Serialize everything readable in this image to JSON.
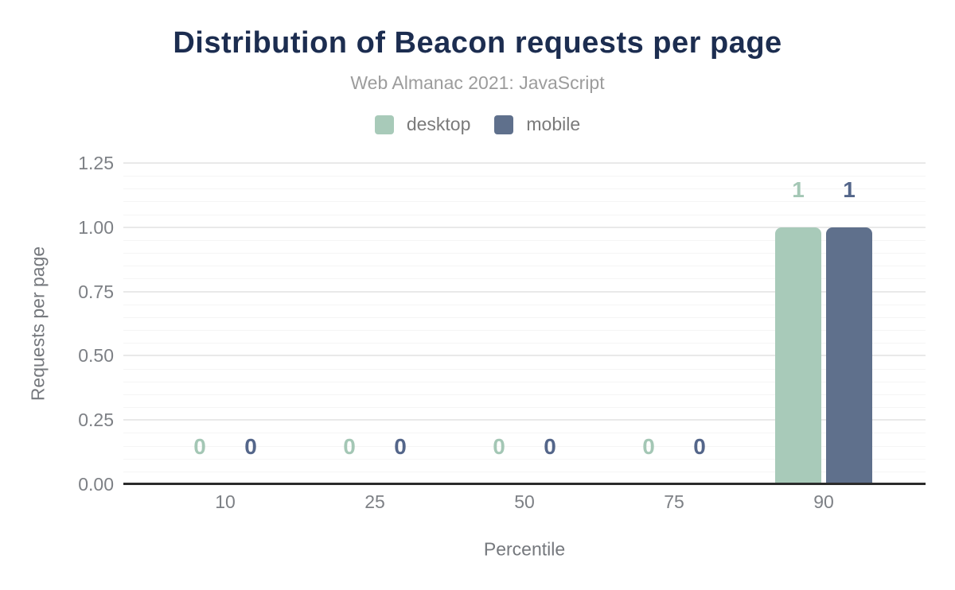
{
  "chart_data": {
    "type": "bar",
    "title": "Distribution of Beacon requests per page",
    "subtitle": "Web Almanac 2021: JavaScript",
    "xlabel": "Percentile",
    "ylabel": "Requests per page",
    "categories": [
      "10",
      "25",
      "50",
      "75",
      "90"
    ],
    "series": [
      {
        "name": "desktop",
        "color": "#a8cab9",
        "label_color": "#a4c7b5",
        "values": [
          0,
          0,
          0,
          0,
          1
        ]
      },
      {
        "name": "mobile",
        "color": "#5f708c",
        "label_color": "#54668a",
        "values": [
          0,
          0,
          0,
          0,
          1
        ]
      }
    ],
    "y_ticks": [
      "0.00",
      "0.25",
      "0.50",
      "0.75",
      "1.00",
      "1.25"
    ],
    "ylim": [
      0,
      1.25
    ],
    "y_major_step": 0.25,
    "y_minor_step": 0.05,
    "grid": true,
    "legend_position": "top-center",
    "colors": {
      "background": "#ffffff",
      "title": "#1c2d50",
      "subtitle": "#9c9c9c",
      "legend_text": "#7a7a7a",
      "tick_text": "#7d8085",
      "axis_title_text": "#75787d",
      "grid_major": "#e9e9e9",
      "grid_minor": "#f5f5f5",
      "axis_line": "#2b2b2b"
    }
  }
}
